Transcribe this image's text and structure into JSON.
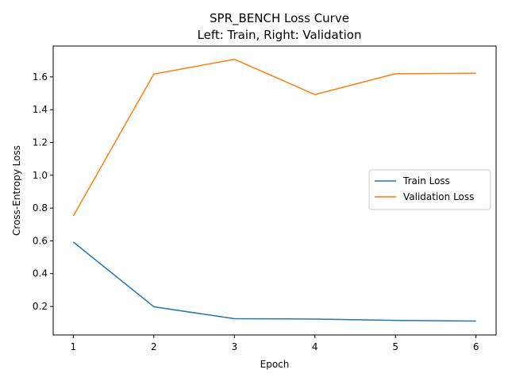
{
  "chart_data": {
    "type": "line",
    "title": "SPR_BENCH Loss Curve",
    "subtitle": "Left: Train, Right: Validation",
    "xlabel": "Epoch",
    "ylabel": "Cross-Entropy Loss",
    "x": [
      1,
      2,
      3,
      4,
      5,
      6
    ],
    "xlim": [
      0.75,
      6.25
    ],
    "ylim": [
      0.026,
      1.788
    ],
    "xticks": [
      1,
      2,
      3,
      4,
      5,
      6
    ],
    "yticks": [
      0.2,
      0.4,
      0.6,
      0.8,
      1.0,
      1.2,
      1.4,
      1.6
    ],
    "ytick_labels": [
      "0.2",
      "0.4",
      "0.6",
      "0.8",
      "1.0",
      "1.2",
      "1.4",
      "1.6"
    ],
    "grid": false,
    "legend_position": "center-right",
    "series": [
      {
        "name": "Train Loss",
        "color": "#1f77b4",
        "values": [
          0.593,
          0.198,
          0.125,
          0.123,
          0.115,
          0.111
        ]
      },
      {
        "name": "Validation Loss",
        "color": "#ff7f0e",
        "values": [
          0.752,
          1.617,
          1.707,
          1.492,
          1.619,
          1.622
        ]
      }
    ]
  }
}
